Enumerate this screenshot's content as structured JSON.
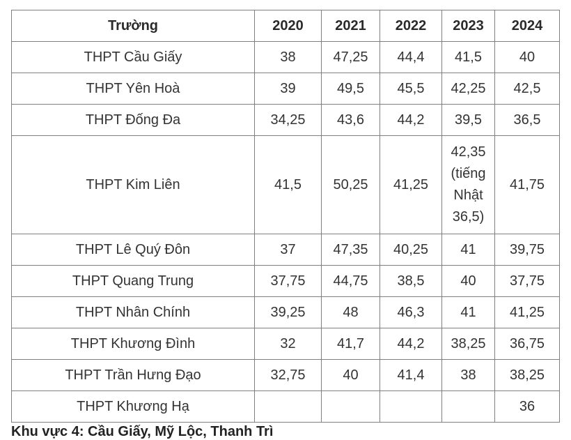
{
  "table": {
    "headers": [
      "Trường",
      "2020",
      "2021",
      "2022",
      "2023",
      "2024"
    ],
    "rows": [
      {
        "school": "THPT Cầu Giấy",
        "values": [
          "38",
          "47,25",
          "44,4",
          "41,5",
          "40"
        ]
      },
      {
        "school": "THPT Yên Hoà",
        "values": [
          "39",
          "49,5",
          "45,5",
          "42,25",
          "42,5"
        ]
      },
      {
        "school": "THPT Đống Đa",
        "values": [
          "34,25",
          "43,6",
          "44,2",
          "39,5",
          "36,5"
        ]
      },
      {
        "school": "THPT Kim Liên",
        "values": [
          "41,5",
          "50,25",
          "41,25",
          "",
          "41,75"
        ],
        "note_2023": [
          "42,35",
          "(tiếng",
          "Nhật",
          "36,5)"
        ]
      },
      {
        "school": "THPT Lê Quý Đôn",
        "values": [
          "37",
          "47,35",
          "40,25",
          "41",
          "39,75"
        ]
      },
      {
        "school": "THPT Quang Trung",
        "values": [
          "37,75",
          "44,75",
          "38,5",
          "40",
          "37,75"
        ]
      },
      {
        "school": "THPT Nhân Chính",
        "values": [
          "39,25",
          "48",
          "46,3",
          "41",
          "41,25"
        ]
      },
      {
        "school": "THPT Khương Đình",
        "values": [
          "32",
          "41,7",
          "44,2",
          "38,25",
          "36,75"
        ]
      },
      {
        "school": "THPT Trần Hưng Đạo",
        "values": [
          "32,75",
          "40",
          "41,4",
          "38",
          "38,25"
        ]
      },
      {
        "school": "THPT Khương Hạ",
        "values": [
          "",
          "",
          "",
          "",
          "36"
        ]
      }
    ]
  },
  "caption": "Khu vực 4: Cầu Giấy, Mỹ Lộc, Thanh Trì"
}
